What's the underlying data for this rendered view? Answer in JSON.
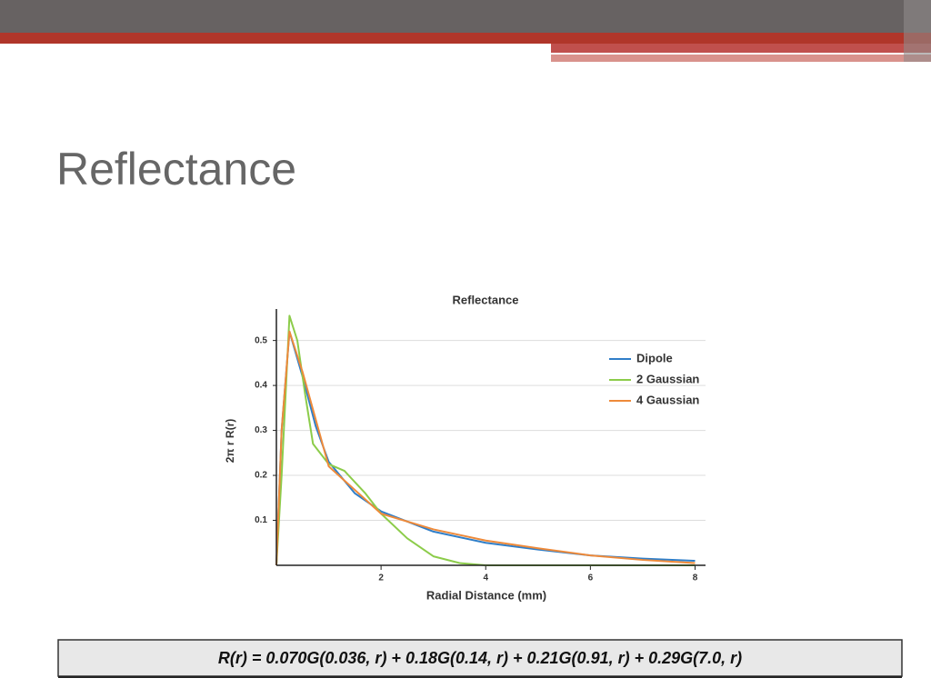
{
  "slide_title": "Reflectance",
  "formula": "R(r) = 0.070G(0.036, r) + 0.18G(0.14, r) + 0.21G(0.91, r) + 0.29G(7.0, r)",
  "chart_data": {
    "type": "line",
    "title": "Reflectance",
    "x_label": "Radial Distance (mm)",
    "y_label": "2π r R(r)",
    "xlim": [
      0,
      8.2
    ],
    "ylim": [
      0,
      0.57
    ],
    "xticks": [
      2,
      4,
      6,
      8
    ],
    "yticks": [
      0.1,
      0.2,
      0.3,
      0.4,
      0.5
    ],
    "grid": true,
    "legend": "upper right",
    "series": [
      {
        "name": "Dipole",
        "color": "#2f7ec8",
        "x": [
          0,
          0.1,
          0.25,
          0.5,
          0.75,
          1,
          1.5,
          2,
          3,
          4,
          5,
          6,
          7,
          8
        ],
        "values": [
          0,
          0.3,
          0.52,
          0.42,
          0.31,
          0.23,
          0.16,
          0.12,
          0.075,
          0.05,
          0.035,
          0.022,
          0.015,
          0.01
        ]
      },
      {
        "name": "2 Gaussian",
        "color": "#8ccc4a",
        "x": [
          0,
          0.1,
          0.25,
          0.4,
          0.55,
          0.7,
          1,
          1.3,
          1.7,
          2,
          2.5,
          3,
          3.5,
          4,
          8
        ],
        "values": [
          0,
          0.2,
          0.555,
          0.5,
          0.38,
          0.27,
          0.225,
          0.21,
          0.16,
          0.115,
          0.06,
          0.02,
          0.005,
          0,
          0
        ]
      },
      {
        "name": "4 Gaussian",
        "color": "#ee8a3a",
        "x": [
          0,
          0.1,
          0.25,
          0.5,
          1,
          2,
          3,
          4,
          5,
          6,
          7,
          8
        ],
        "values": [
          0,
          0.3,
          0.52,
          0.43,
          0.22,
          0.115,
          0.08,
          0.055,
          0.038,
          0.022,
          0.012,
          0.005
        ]
      }
    ]
  }
}
